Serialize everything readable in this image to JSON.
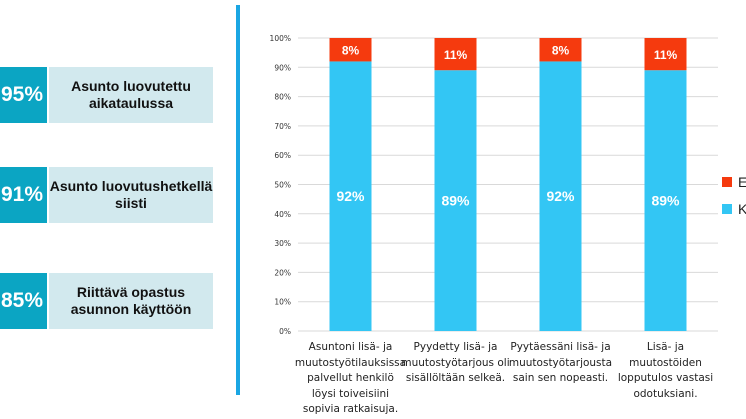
{
  "kpis": [
    {
      "value": "95%",
      "label": "Asunto luovutettu aikataulussa"
    },
    {
      "value": "91%",
      "label": "Asunto luovutushetkellä siisti"
    },
    {
      "value": "85%",
      "label": "Riittävä opastus asunnon käyttöön"
    }
  ],
  "chart_data": {
    "type": "bar",
    "stacked": true,
    "categories": [
      "Asuntoni lisä- ja muutostyötilauksissa palvellut henkilö löysi toiveisiini sopivia ratkaisuja.",
      "Pyydetty lisä- ja muutostyötarjous oli sisällöltään selkeä.",
      "Pyytäessäni lisä- ja muutostyötarjousta sain sen nopeasti.",
      "Lisä- ja muutostöiden lopputulos vastasi odotuksiani."
    ],
    "series": [
      {
        "name": "Kyllä",
        "values": [
          92,
          89,
          92,
          89
        ],
        "color": "#33c6f4"
      },
      {
        "name": "Ei",
        "values": [
          8,
          11,
          8,
          11
        ],
        "color": "#f53a0e"
      }
    ],
    "data_labels": {
      "Kyllä": [
        "92%",
        "89%",
        "92%",
        "89%"
      ],
      "Ei": [
        "8%",
        "11%",
        "8%",
        "11%"
      ]
    },
    "yticks": [
      "0%",
      "10%",
      "20%",
      "30%",
      "40%",
      "50%",
      "60%",
      "70%",
      "80%",
      "90%",
      "100%"
    ],
    "ylim": [
      0,
      100
    ],
    "grid": true,
    "legend": "right"
  }
}
